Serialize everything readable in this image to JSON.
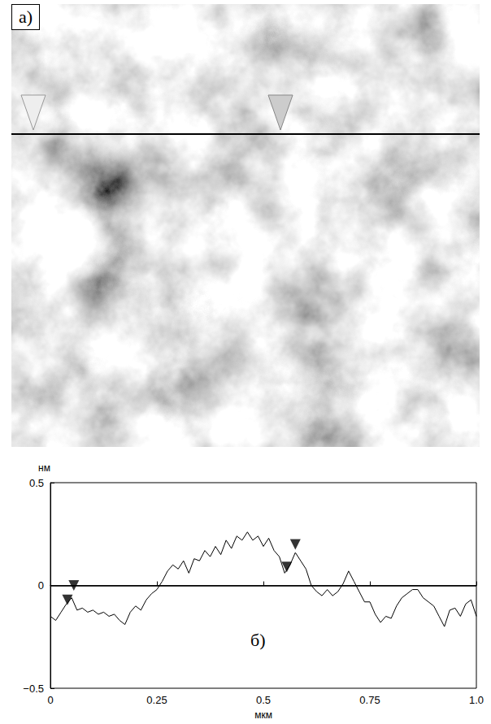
{
  "image_panel": {
    "label": "а)"
  },
  "chart_data": {
    "type": "line",
    "panel_label": "б)",
    "y_label": "нм",
    "x_label": "мкм",
    "xlim": [
      0,
      1
    ],
    "ylim": [
      -0.5,
      0.5
    ],
    "xticks": [
      0,
      0.25,
      0.5,
      0.75,
      {
        "value": 1,
        "label": "1.0"
      }
    ],
    "yticks": [
      {
        "value": -0.5,
        "label": "−0.5"
      },
      0,
      0.5
    ],
    "grid": false,
    "color": "#000000",
    "hlines": [
      0
    ],
    "x": [
      0,
      0.0125,
      0.025,
      0.0375,
      0.05,
      0.0625,
      0.075,
      0.0875,
      0.1,
      0.1125,
      0.125,
      0.1375,
      0.15,
      0.1625,
      0.175,
      0.1875,
      0.2,
      0.2125,
      0.225,
      0.2375,
      0.25,
      0.2625,
      0.275,
      0.2875,
      0.3,
      0.3125,
      0.325,
      0.3375,
      0.35,
      0.3625,
      0.375,
      0.3875,
      0.4,
      0.4125,
      0.425,
      0.4375,
      0.45,
      0.4625,
      0.475,
      0.4875,
      0.5,
      0.5125,
      0.525,
      0.5375,
      0.55,
      0.5625,
      0.575,
      0.5875,
      0.6,
      0.6125,
      0.625,
      0.6375,
      0.65,
      0.6625,
      0.675,
      0.6875,
      0.7,
      0.7125,
      0.725,
      0.7375,
      0.75,
      0.7625,
      0.775,
      0.7875,
      0.8,
      0.8125,
      0.825,
      0.8375,
      0.85,
      0.8625,
      0.875,
      0.8875,
      0.9,
      0.9125,
      0.925,
      0.9375,
      0.95,
      0.9625,
      0.975,
      0.9875,
      1.0
    ],
    "values": [
      -0.15,
      -0.17,
      -0.13,
      -0.09,
      -0.06,
      -0.12,
      -0.11,
      -0.13,
      -0.12,
      -0.14,
      -0.13,
      -0.15,
      -0.14,
      -0.17,
      -0.19,
      -0.13,
      -0.1,
      -0.12,
      -0.07,
      -0.04,
      -0.02,
      0.02,
      0.07,
      0.1,
      0.08,
      0.12,
      0.06,
      0.13,
      0.12,
      0.17,
      0.14,
      0.19,
      0.15,
      0.22,
      0.18,
      0.24,
      0.22,
      0.26,
      0.22,
      0.24,
      0.19,
      0.23,
      0.17,
      0.14,
      0.06,
      0.1,
      0.16,
      0.12,
      0.08,
      0.0,
      -0.03,
      -0.05,
      -0.02,
      -0.05,
      -0.03,
      0.01,
      0.07,
      0.02,
      -0.03,
      -0.08,
      -0.08,
      -0.14,
      -0.18,
      -0.15,
      -0.16,
      -0.1,
      -0.06,
      -0.04,
      -0.02,
      -0.02,
      -0.06,
      -0.08,
      -0.1,
      -0.15,
      -0.2,
      -0.12,
      -0.11,
      -0.15,
      -0.09,
      -0.07,
      -0.15
    ],
    "markers": {
      "marker": "triangle-down",
      "x": [
        0.04,
        0.055,
        0.555,
        0.575
      ],
      "y": [
        -0.07,
        0.0,
        0.09,
        0.2
      ]
    }
  }
}
